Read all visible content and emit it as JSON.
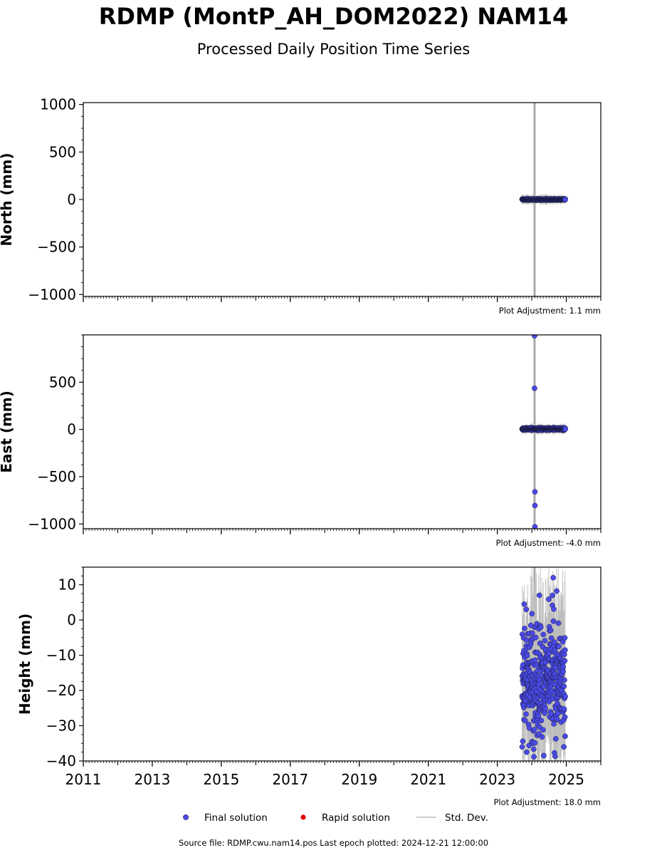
{
  "title": "RDMP (MontP_AH_DOM2022) NAM14",
  "subtitle": "Processed Daily Position Time Series",
  "source_text": "Source file: RDMP.cwu.nam14.pos  Last epoch plotted: 2024-12-21 12:00:00",
  "legend": {
    "final": "Final solution",
    "rapid": "Rapid solution",
    "std": "Std. Dev."
  },
  "colors": {
    "final": "#4a4ae8",
    "final_edge": "#1a1a40",
    "rapid": "#e00000",
    "std": "#bdbdbd"
  },
  "chart_data": [
    {
      "type": "scatter",
      "ylabel": "North (mm)",
      "adjustment": "Plot Adjustment: 1.1 mm",
      "xlim": [
        2011,
        2026
      ],
      "ylim": [
        -1020,
        1020
      ],
      "yticks": [
        1000,
        500,
        0,
        -500,
        -1000
      ],
      "yticklabels": [
        "1000",
        "500",
        "0",
        "−500",
        "−1000"
      ],
      "xticks": [
        2011,
        2013,
        2015,
        2017,
        2019,
        2021,
        2023,
        2025
      ],
      "xticklabels": [],
      "data_span": [
        2023.72,
        2024.97
      ],
      "cluster_center": 0,
      "cluster_spread": 3,
      "outliers": [],
      "std_vline": 2024.08,
      "grid": false
    },
    {
      "type": "scatter",
      "ylabel": "East (mm)",
      "adjustment": "Plot Adjustment: -4.0 mm",
      "xlim": [
        2011,
        2026
      ],
      "ylim": [
        -1050,
        1000
      ],
      "yticks": [
        500,
        0,
        -500,
        -1000
      ],
      "yticklabels": [
        "500",
        "0",
        "−500",
        "−1000"
      ],
      "xticks": [
        2011,
        2013,
        2015,
        2017,
        2019,
        2021,
        2023,
        2025
      ],
      "xticklabels": [],
      "data_span": [
        2023.72,
        2024.97
      ],
      "cluster_center": 5,
      "cluster_spread": 6,
      "outliers": [
        [
          2024.08,
          990
        ],
        [
          2024.08,
          435
        ],
        [
          2024.09,
          -660
        ],
        [
          2024.09,
          -805
        ],
        [
          2024.09,
          -1030
        ]
      ],
      "std_vline": 2024.08,
      "grid": false
    },
    {
      "type": "scatter",
      "ylabel": "Height (mm)",
      "adjustment": "Plot Adjustment: 18.0 mm",
      "xlim": [
        2011,
        2026
      ],
      "ylim": [
        -40,
        15
      ],
      "yticks": [
        10,
        0,
        -10,
        -20,
        -30,
        -40
      ],
      "yticklabels": [
        "10",
        "0",
        "−10",
        "−20",
        "−30",
        "−40"
      ],
      "xticks": [
        2011,
        2013,
        2015,
        2017,
        2019,
        2021,
        2023,
        2025
      ],
      "xticklabels": [
        "2011",
        "2013",
        "2015",
        "2017",
        "2019",
        "2021",
        "2023",
        "2025"
      ],
      "data_span": [
        2023.72,
        2024.97
      ],
      "cluster_center": -17,
      "cluster_spread": 8,
      "outliers": [
        [
          2023.78,
          4.5
        ],
        [
          2023.84,
          3
        ],
        [
          2024.22,
          7
        ],
        [
          2024.62,
          12
        ],
        [
          2024.6,
          7
        ],
        [
          2023.72,
          -36
        ],
        [
          2023.85,
          -37.5
        ],
        [
          2024.93,
          -36
        ]
      ],
      "std_vline": 2024.08,
      "grid": false
    }
  ]
}
